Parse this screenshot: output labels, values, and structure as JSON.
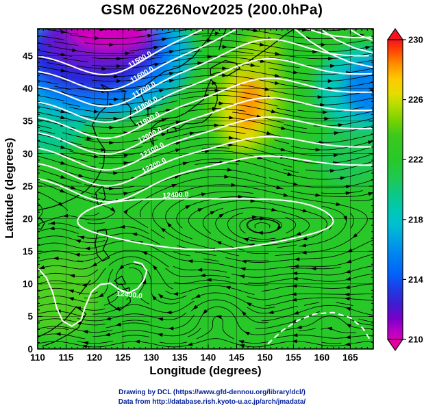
{
  "title": "GSM 06Z26Nov2025 (200.0hPa)",
  "axes": {
    "x_label": "Longitude (degrees)",
    "y_label": "Latitude  (degrees)",
    "x_ticks": [
      110,
      115,
      120,
      125,
      130,
      135,
      140,
      145,
      150,
      155,
      160,
      165
    ],
    "y_ticks": [
      0,
      5,
      10,
      15,
      20,
      25,
      30,
      35,
      40,
      45
    ]
  },
  "colorbar": {
    "ticks": [
      230,
      226,
      222,
      218,
      214,
      210
    ],
    "value_range": [
      210,
      230
    ],
    "top_arrow_color": "#f5141e",
    "bottom_arrow_color": "#e600a0",
    "stops": [
      [
        0,
        "#f5141e"
      ],
      [
        0.04,
        "#ff4b00"
      ],
      [
        0.08,
        "#ff8c00"
      ],
      [
        0.13,
        "#ffc800"
      ],
      [
        0.18,
        "#e6dc00"
      ],
      [
        0.22,
        "#b4dc00"
      ],
      [
        0.27,
        "#78d200"
      ],
      [
        0.32,
        "#3cc81e"
      ],
      [
        0.4,
        "#28c828"
      ],
      [
        0.47,
        "#1ec85a"
      ],
      [
        0.52,
        "#0ac88c"
      ],
      [
        0.57,
        "#00c8b4"
      ],
      [
        0.62,
        "#00bed2"
      ],
      [
        0.67,
        "#00a0e6"
      ],
      [
        0.72,
        "#0082f0"
      ],
      [
        0.78,
        "#0064fa"
      ],
      [
        0.83,
        "#1e3ce6"
      ],
      [
        0.88,
        "#3c1ed2"
      ],
      [
        0.93,
        "#7800c8"
      ],
      [
        0.97,
        "#b400c8"
      ],
      [
        1,
        "#d200b4"
      ]
    ]
  },
  "contour_labels": {
    "zonal": [
      "11500.0",
      "11600.0",
      "11700.0",
      "11800.0",
      "11900.0",
      "12000.0",
      "12100.0",
      "12200.0"
    ],
    "other": [
      {
        "text": "12400.0",
        "lon": 134.3,
        "lat": 23.3,
        "rot": -3
      },
      {
        "text": "12400.0",
        "lon": 126.1,
        "lat": 8.0,
        "rot": 6
      }
    ]
  },
  "credits": {
    "line1": "Drawing by DCL (https://www.gfd-dennou.org/library/dcl/)",
    "line2": "Data from http://database.rish.kyoto-u.ac.jp/arch/jmadata/"
  },
  "chart_data": {
    "type": "heatmap",
    "title": "GSM 06Z26Nov2025 (200.0hPa)",
    "model": "GSM",
    "valid_time": "06Z 26 Nov 2025",
    "level_hPa": 200.0,
    "xlabel": "Longitude (degrees)",
    "ylabel": "Latitude (degrees)",
    "xlim": [
      110,
      169
    ],
    "ylim": [
      0,
      49.2
    ],
    "grid": true,
    "grid_interval_deg": 5,
    "shading": {
      "variable": "color-fill field with vertical colorbar",
      "range": [
        210,
        230
      ],
      "colorbar_ticks": [
        210,
        214,
        218,
        222,
        226,
        230
      ],
      "colorbar_position": "right",
      "regions": [
        {
          "value": "<212",
          "color": "magenta-purple",
          "lon_range": [
            113,
            131
          ],
          "lat_range": [
            42,
            49
          ]
        },
        {
          "value": "212-216",
          "color": "blue",
          "lon_range": [
            110,
            134
          ],
          "lat_range": [
            36,
            49
          ]
        },
        {
          "value": "214-218",
          "color": "blue-cyan",
          "lon_range": [
            160,
            169
          ],
          "lat_range": [
            34,
            45
          ]
        },
        {
          "value": "226-229",
          "color": "yellow-orange streak",
          "lon_range": [
            143,
            151
          ],
          "lat_range": [
            31,
            43
          ]
        },
        {
          "value": "220-224",
          "color": "green background",
          "lon_range": [
            110,
            169
          ],
          "lat_range": [
            0,
            49
          ]
        }
      ]
    },
    "contours": {
      "variable": "geopotential height contours (white)",
      "interval": 100,
      "levels_labeled": [
        11500,
        11600,
        11700,
        11800,
        11900,
        12000,
        12100,
        12200,
        12400
      ],
      "trough_axis_lon": 123,
      "closed_contour": {
        "level": 12400,
        "center": [
          140,
          20
        ],
        "lon_extent": [
          117,
          162
        ]
      }
    },
    "streamlines": {
      "variable": "horizontal wind",
      "style": "black streamlines with arrowheads",
      "features": [
        {
          "type": "westerly jet",
          "lat_range": [
            25,
            49
          ]
        },
        {
          "type": "anticyclonic circulation",
          "center": [
            150.8,
            18.3
          ]
        },
        {
          "type": "cyclonic eddy",
          "center": [
            126.6,
            12.2
          ]
        },
        {
          "type": "cyclonic eddy",
          "center": [
            141.8,
            5.8
          ]
        },
        {
          "type": "cyclonic eddy",
          "center": [
            161.5,
            5.4
          ]
        },
        {
          "type": "tropical easterlies",
          "lat_range": [
            0,
            12
          ]
        }
      ]
    }
  }
}
